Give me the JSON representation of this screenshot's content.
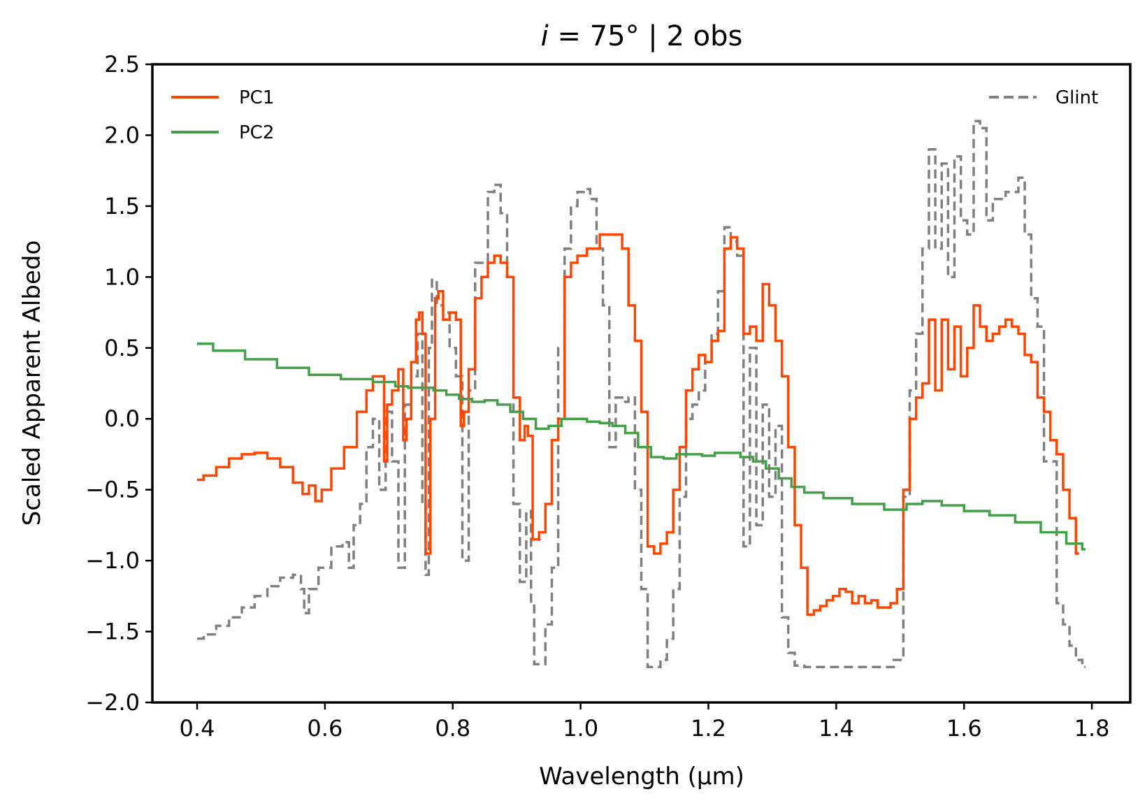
{
  "chart_data": {
    "type": "line",
    "title_var": "i",
    "title_rest": " = 75° | 2 obs",
    "xlabel": "Wavelength (µm)",
    "ylabel": "Scaled Apparent Albedo",
    "xlim": [
      0.33,
      1.86
    ],
    "ylim": [
      -2.0,
      2.5
    ],
    "xticks": [
      0.4,
      0.6,
      0.8,
      1.0,
      1.2,
      1.4,
      1.6,
      1.8
    ],
    "xtick_labels": [
      "0.4",
      "0.6",
      "0.8",
      "1.0",
      "1.2",
      "1.4",
      "1.6",
      "1.8"
    ],
    "yticks": [
      -2.0,
      -1.5,
      -1.0,
      -0.5,
      0.0,
      0.5,
      1.0,
      1.5,
      2.0,
      2.5
    ],
    "ytick_labels": [
      "−2.0",
      "−1.5",
      "−1.0",
      "−0.5",
      "0.0",
      "0.5",
      "1.0",
      "1.5",
      "2.0",
      "2.5"
    ],
    "legend_left": [
      "PC1",
      "PC2"
    ],
    "legend_right": [
      "Glint"
    ],
    "series": [
      {
        "name": "Glint",
        "color": "#808080",
        "style": "dashed",
        "points": [
          [
            0.4,
            -1.55
          ],
          [
            0.42,
            -1.52
          ],
          [
            0.44,
            -1.46
          ],
          [
            0.46,
            -1.4
          ],
          [
            0.48,
            -1.33
          ],
          [
            0.5,
            -1.25
          ],
          [
            0.52,
            -1.18
          ],
          [
            0.54,
            -1.12
          ],
          [
            0.56,
            -1.1
          ],
          [
            0.565,
            -1.2
          ],
          [
            0.57,
            -1.37
          ],
          [
            0.58,
            -1.2
          ],
          [
            0.6,
            -1.05
          ],
          [
            0.62,
            -0.9
          ],
          [
            0.635,
            -0.87
          ],
          [
            0.64,
            -1.05
          ],
          [
            0.65,
            -0.75
          ],
          [
            0.66,
            -0.6
          ],
          [
            0.67,
            -0.2
          ],
          [
            0.68,
            0.0
          ],
          [
            0.69,
            -0.5
          ],
          [
            0.7,
            0.05
          ],
          [
            0.71,
            -0.3
          ],
          [
            0.72,
            -1.05
          ],
          [
            0.73,
            0.1
          ],
          [
            0.74,
            0.3
          ],
          [
            0.75,
            0.6
          ],
          [
            0.755,
            -0.6
          ],
          [
            0.76,
            -1.1
          ],
          [
            0.765,
            0.5
          ],
          [
            0.77,
            0.98
          ],
          [
            0.78,
            0.8
          ],
          [
            0.79,
            0.75
          ],
          [
            0.8,
            0.5
          ],
          [
            0.81,
            0.3
          ],
          [
            0.82,
            -1.0
          ],
          [
            0.83,
            0.2
          ],
          [
            0.84,
            1.1
          ],
          [
            0.85,
            1.1
          ],
          [
            0.86,
            1.6
          ],
          [
            0.87,
            1.65
          ],
          [
            0.88,
            1.45
          ],
          [
            0.89,
            1.0
          ],
          [
            0.9,
            -0.6
          ],
          [
            0.91,
            -1.15
          ],
          [
            0.92,
            -0.65
          ],
          [
            0.925,
            -1.3
          ],
          [
            0.93,
            -1.73
          ],
          [
            0.94,
            -1.73
          ],
          [
            0.95,
            -1.45
          ],
          [
            0.96,
            -1.05
          ],
          [
            0.97,
            0.5
          ],
          [
            0.98,
            1.2
          ],
          [
            0.99,
            1.5
          ],
          [
            1.0,
            1.6
          ],
          [
            1.01,
            1.62
          ],
          [
            1.02,
            1.55
          ],
          [
            1.03,
            1.2
          ],
          [
            1.04,
            0.8
          ],
          [
            1.05,
            -0.2
          ],
          [
            1.06,
            0.15
          ],
          [
            1.07,
            0.12
          ],
          [
            1.08,
            0.15
          ],
          [
            1.09,
            -0.5
          ],
          [
            1.1,
            -1.2
          ],
          [
            1.11,
            -1.75
          ],
          [
            1.12,
            -1.75
          ],
          [
            1.13,
            -1.7
          ],
          [
            1.14,
            -1.55
          ],
          [
            1.15,
            -1.2
          ],
          [
            1.16,
            -0.55
          ],
          [
            1.17,
            0.0
          ],
          [
            1.18,
            0.1
          ],
          [
            1.19,
            0.2
          ],
          [
            1.2,
            0.4
          ],
          [
            1.21,
            0.6
          ],
          [
            1.22,
            0.9
          ],
          [
            1.23,
            1.35
          ],
          [
            1.24,
            1.25
          ],
          [
            1.25,
            1.15
          ],
          [
            1.26,
            -0.9
          ],
          [
            1.27,
            0.5
          ],
          [
            1.28,
            -0.75
          ],
          [
            1.29,
            0.1
          ],
          [
            1.3,
            -0.55
          ],
          [
            1.31,
            -0.05
          ],
          [
            1.32,
            -1.4
          ],
          [
            1.33,
            -1.65
          ],
          [
            1.34,
            -1.74
          ],
          [
            1.36,
            -1.75
          ],
          [
            1.48,
            -1.75
          ],
          [
            1.5,
            -1.7
          ],
          [
            1.51,
            -0.55
          ],
          [
            1.52,
            0.2
          ],
          [
            1.53,
            0.6
          ],
          [
            1.54,
            1.2
          ],
          [
            1.55,
            1.9
          ],
          [
            1.56,
            1.2
          ],
          [
            1.57,
            1.8
          ],
          [
            1.58,
            1.0
          ],
          [
            1.59,
            1.85
          ],
          [
            1.6,
            1.4
          ],
          [
            1.61,
            1.3
          ],
          [
            1.62,
            2.1
          ],
          [
            1.63,
            2.05
          ],
          [
            1.64,
            1.4
          ],
          [
            1.65,
            1.55
          ],
          [
            1.66,
            1.55
          ],
          [
            1.67,
            1.6
          ],
          [
            1.68,
            1.6
          ],
          [
            1.69,
            1.7
          ],
          [
            1.7,
            1.3
          ],
          [
            1.71,
            0.85
          ],
          [
            1.72,
            0.65
          ],
          [
            1.73,
            -0.3
          ],
          [
            1.74,
            -0.3
          ],
          [
            1.75,
            -1.3
          ],
          [
            1.76,
            -1.45
          ],
          [
            1.77,
            -1.6
          ],
          [
            1.78,
            -1.7
          ],
          [
            1.79,
            -1.75
          ]
        ]
      },
      {
        "name": "PC1",
        "color": "#ff4500",
        "style": "solid",
        "points": [
          [
            0.4,
            -0.43
          ],
          [
            0.42,
            -0.4
          ],
          [
            0.44,
            -0.34
          ],
          [
            0.46,
            -0.28
          ],
          [
            0.48,
            -0.25
          ],
          [
            0.5,
            -0.24
          ],
          [
            0.52,
            -0.28
          ],
          [
            0.54,
            -0.34
          ],
          [
            0.56,
            -0.45
          ],
          [
            0.57,
            -0.53
          ],
          [
            0.58,
            -0.47
          ],
          [
            0.59,
            -0.58
          ],
          [
            0.6,
            -0.5
          ],
          [
            0.62,
            -0.35
          ],
          [
            0.64,
            -0.2
          ],
          [
            0.66,
            0.05
          ],
          [
            0.67,
            0.2
          ],
          [
            0.68,
            0.3
          ],
          [
            0.69,
            0.3
          ],
          [
            0.695,
            -0.3
          ],
          [
            0.7,
            0.1
          ],
          [
            0.71,
            0.2
          ],
          [
            0.72,
            0.35
          ],
          [
            0.725,
            -0.15
          ],
          [
            0.73,
            0.0
          ],
          [
            0.74,
            0.4
          ],
          [
            0.745,
            0.7
          ],
          [
            0.75,
            0.75
          ],
          [
            0.755,
            0.6
          ],
          [
            0.76,
            -0.95
          ],
          [
            0.77,
            0.0
          ],
          [
            0.775,
            0.85
          ],
          [
            0.78,
            0.9
          ],
          [
            0.79,
            0.7
          ],
          [
            0.8,
            0.75
          ],
          [
            0.81,
            0.7
          ],
          [
            0.815,
            -0.05
          ],
          [
            0.82,
            0.05
          ],
          [
            0.83,
            0.35
          ],
          [
            0.84,
            0.85
          ],
          [
            0.85,
            1.0
          ],
          [
            0.86,
            1.1
          ],
          [
            0.87,
            1.15
          ],
          [
            0.88,
            1.1
          ],
          [
            0.89,
            1.0
          ],
          [
            0.9,
            0.15
          ],
          [
            0.91,
            -0.15
          ],
          [
            0.915,
            -0.05
          ],
          [
            0.92,
            -0.12
          ],
          [
            0.93,
            -0.85
          ],
          [
            0.94,
            -0.8
          ],
          [
            0.95,
            -0.6
          ],
          [
            0.96,
            -0.15
          ],
          [
            0.97,
            0.0
          ],
          [
            0.98,
            1.0
          ],
          [
            0.99,
            1.1
          ],
          [
            1.0,
            1.15
          ],
          [
            1.02,
            1.2
          ],
          [
            1.04,
            1.3
          ],
          [
            1.06,
            1.3
          ],
          [
            1.07,
            1.2
          ],
          [
            1.08,
            0.8
          ],
          [
            1.09,
            0.55
          ],
          [
            1.1,
            0.05
          ],
          [
            1.11,
            -0.9
          ],
          [
            1.12,
            -0.95
          ],
          [
            1.13,
            -0.88
          ],
          [
            1.14,
            -0.8
          ],
          [
            1.15,
            -0.5
          ],
          [
            1.16,
            -0.2
          ],
          [
            1.17,
            0.2
          ],
          [
            1.18,
            0.35
          ],
          [
            1.19,
            0.45
          ],
          [
            1.2,
            0.4
          ],
          [
            1.21,
            0.55
          ],
          [
            1.22,
            0.62
          ],
          [
            1.23,
            1.2
          ],
          [
            1.24,
            1.28
          ],
          [
            1.25,
            1.2
          ],
          [
            1.26,
            0.6
          ],
          [
            1.27,
            0.65
          ],
          [
            1.28,
            0.55
          ],
          [
            1.29,
            0.95
          ],
          [
            1.3,
            0.8
          ],
          [
            1.31,
            0.55
          ],
          [
            1.32,
            0.3
          ],
          [
            1.33,
            -0.2
          ],
          [
            1.34,
            -0.75
          ],
          [
            1.35,
            -1.05
          ],
          [
            1.36,
            -1.38
          ],
          [
            1.37,
            -1.35
          ],
          [
            1.38,
            -1.32
          ],
          [
            1.39,
            -1.28
          ],
          [
            1.4,
            -1.25
          ],
          [
            1.41,
            -1.2
          ],
          [
            1.42,
            -1.22
          ],
          [
            1.43,
            -1.3
          ],
          [
            1.44,
            -1.25
          ],
          [
            1.45,
            -1.3
          ],
          [
            1.46,
            -1.28
          ],
          [
            1.47,
            -1.33
          ],
          [
            1.48,
            -1.33
          ],
          [
            1.49,
            -1.3
          ],
          [
            1.5,
            -1.2
          ],
          [
            1.51,
            -0.5
          ],
          [
            1.52,
            0.0
          ],
          [
            1.53,
            0.15
          ],
          [
            1.54,
            0.25
          ],
          [
            1.55,
            0.7
          ],
          [
            1.56,
            0.2
          ],
          [
            1.57,
            0.7
          ],
          [
            1.58,
            0.35
          ],
          [
            1.59,
            0.65
          ],
          [
            1.6,
            0.3
          ],
          [
            1.61,
            0.5
          ],
          [
            1.62,
            0.8
          ],
          [
            1.63,
            0.65
          ],
          [
            1.64,
            0.55
          ],
          [
            1.65,
            0.6
          ],
          [
            1.66,
            0.65
          ],
          [
            1.67,
            0.7
          ],
          [
            1.68,
            0.65
          ],
          [
            1.69,
            0.6
          ],
          [
            1.7,
            0.45
          ],
          [
            1.71,
            0.4
          ],
          [
            1.72,
            0.15
          ],
          [
            1.73,
            0.05
          ],
          [
            1.74,
            -0.15
          ],
          [
            1.75,
            -0.25
          ],
          [
            1.76,
            -0.5
          ],
          [
            1.77,
            -0.7
          ],
          [
            1.78,
            -0.95
          ]
        ]
      },
      {
        "name": "PC2",
        "color": "#43a047",
        "style": "solid",
        "points": [
          [
            0.4,
            0.53
          ],
          [
            0.45,
            0.48
          ],
          [
            0.5,
            0.42
          ],
          [
            0.55,
            0.36
          ],
          [
            0.6,
            0.31
          ],
          [
            0.65,
            0.28
          ],
          [
            0.7,
            0.26
          ],
          [
            0.72,
            0.23
          ],
          [
            0.74,
            0.22
          ],
          [
            0.76,
            0.22
          ],
          [
            0.78,
            0.2
          ],
          [
            0.8,
            0.17
          ],
          [
            0.82,
            0.14
          ],
          [
            0.84,
            0.12
          ],
          [
            0.86,
            0.13
          ],
          [
            0.88,
            0.1
          ],
          [
            0.9,
            0.05
          ],
          [
            0.92,
            0.0
          ],
          [
            0.94,
            -0.07
          ],
          [
            0.96,
            -0.05
          ],
          [
            0.98,
            0.0
          ],
          [
            1.0,
            0.0
          ],
          [
            1.02,
            -0.02
          ],
          [
            1.04,
            -0.03
          ],
          [
            1.06,
            -0.05
          ],
          [
            1.08,
            -0.1
          ],
          [
            1.1,
            -0.2
          ],
          [
            1.12,
            -0.27
          ],
          [
            1.14,
            -0.28
          ],
          [
            1.16,
            -0.25
          ],
          [
            1.18,
            -0.25
          ],
          [
            1.2,
            -0.26
          ],
          [
            1.22,
            -0.24
          ],
          [
            1.24,
            -0.24
          ],
          [
            1.26,
            -0.27
          ],
          [
            1.28,
            -0.3
          ],
          [
            1.3,
            -0.35
          ],
          [
            1.32,
            -0.42
          ],
          [
            1.34,
            -0.48
          ],
          [
            1.36,
            -0.52
          ],
          [
            1.4,
            -0.56
          ],
          [
            1.45,
            -0.6
          ],
          [
            1.5,
            -0.64
          ],
          [
            1.52,
            -0.6
          ],
          [
            1.55,
            -0.58
          ],
          [
            1.58,
            -0.61
          ],
          [
            1.62,
            -0.65
          ],
          [
            1.66,
            -0.68
          ],
          [
            1.7,
            -0.73
          ],
          [
            1.74,
            -0.8
          ],
          [
            1.78,
            -0.88
          ],
          [
            1.79,
            -0.92
          ]
        ]
      }
    ]
  }
}
